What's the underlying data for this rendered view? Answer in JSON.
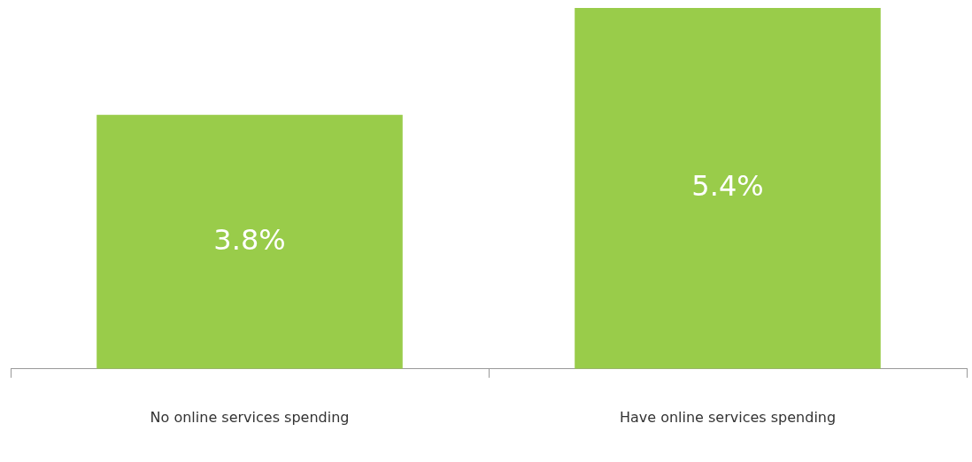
{
  "chart_data": {
    "type": "bar",
    "categories": [
      "No online services spending",
      "Have online services spending"
    ],
    "values": [
      3.8,
      5.4
    ],
    "value_labels": [
      "3.8%",
      "5.4%"
    ],
    "color": "#99cc4a",
    "grid": false,
    "legend": false,
    "tick_labels": "x"
  }
}
